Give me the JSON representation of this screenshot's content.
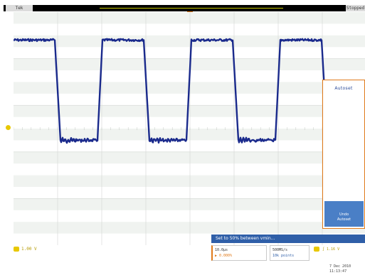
{
  "header": {
    "channel_tag": "Tek",
    "run_state": "Stopped",
    "record_bar_color": "#c8c800"
  },
  "trace": {
    "color": "#1a2a8c",
    "high_level": 0.88,
    "low_level": 0.45
  },
  "autoset_panel": {
    "title": "Autoset",
    "undo_label_line1": "Undo",
    "undo_label_line2": "Autoset"
  },
  "status_banner": "Set to 50% between vmin...",
  "channel1": {
    "label": "1",
    "scale": "1.00 V"
  },
  "timebase": {
    "line1": "10.0µs",
    "line2": "▶ 0.000%"
  },
  "acquisition": {
    "line1": "500MS/s",
    "line2": "10k points"
  },
  "trigger": {
    "source": "1",
    "slope": "∫",
    "level": "1.16 V"
  },
  "datetime": {
    "date": "7 Dec 2010",
    "time": "11:13:47"
  }
}
